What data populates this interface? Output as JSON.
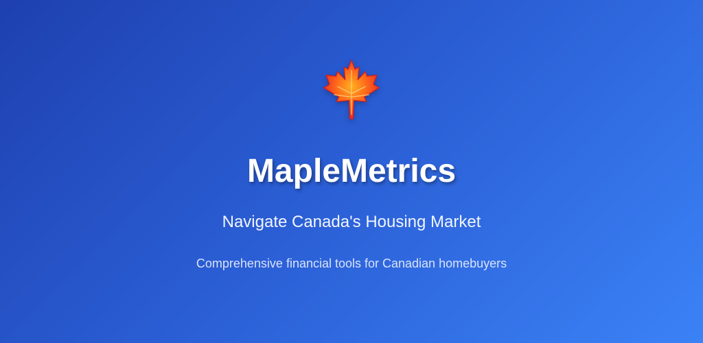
{
  "hero": {
    "logo_icon": "maple-leaf-icon",
    "title": "MapleMetrics",
    "subtitle": "Navigate Canada's Housing Market",
    "tagline": "Comprehensive financial tools for Canadian homebuyers"
  },
  "colors": {
    "background_start": "#1e40af",
    "background_end": "#3b82f6",
    "leaf_orange": "#ff6a1a",
    "leaf_red": "#e0202a",
    "text": "#ffffff"
  }
}
